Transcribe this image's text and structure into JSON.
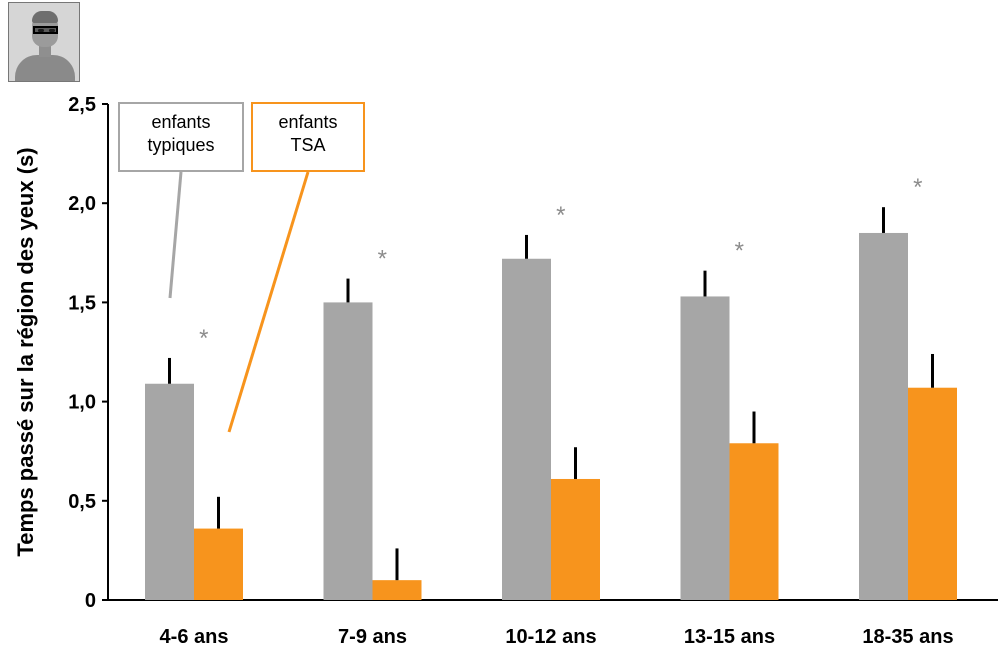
{
  "chart_data": {
    "type": "bar",
    "ylabel": "Temps passé sur la région des yeux (s)",
    "ylim": [
      0,
      2.5
    ],
    "yticks": [
      "0",
      "0,5",
      "1,0",
      "1,5",
      "2,0",
      "2,5"
    ],
    "categories": [
      "4-6 ans",
      "7-9 ans",
      "10-12 ans",
      "13-15 ans",
      "18-35 ans"
    ],
    "series": [
      {
        "name": "enfants typiques",
        "color": "#a6a6a6",
        "values": [
          1.09,
          1.5,
          1.72,
          1.53,
          1.85
        ],
        "errors": [
          0.13,
          0.12,
          0.12,
          0.13,
          0.13
        ]
      },
      {
        "name": "enfants TSA",
        "color": "#f7941d",
        "values": [
          0.36,
          0.1,
          0.61,
          0.79,
          1.07
        ],
        "errors": [
          0.16,
          0.16,
          0.16,
          0.16,
          0.17
        ]
      }
    ],
    "significance_marker": "*",
    "significance_color": "#8c8c8c",
    "grid": false
  },
  "legend": {
    "typical": {
      "line1": "enfants",
      "line2": "typiques"
    },
    "tsa": {
      "line1": "enfants",
      "line2": "TSA"
    }
  },
  "thumbnail": {
    "icon": "face-eye-region-icon"
  }
}
